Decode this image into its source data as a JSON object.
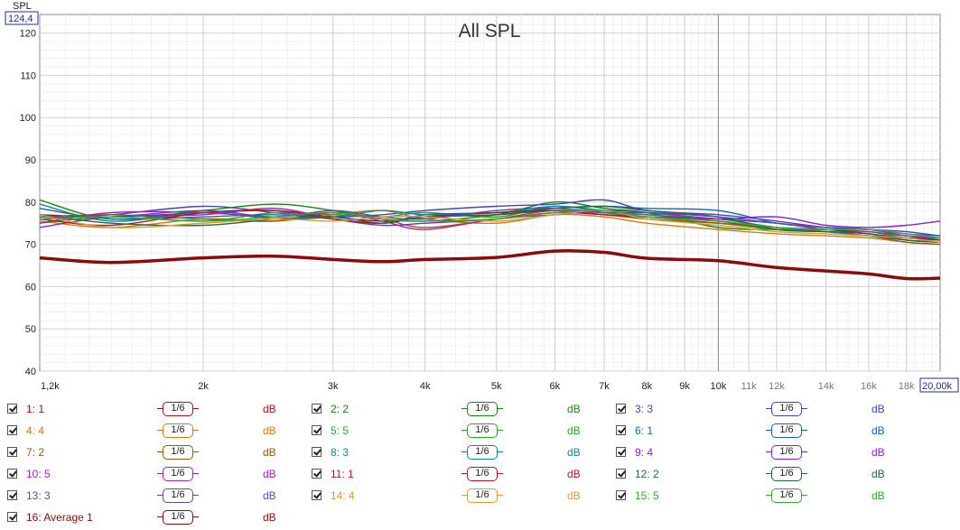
{
  "chart_data": {
    "type": "line",
    "title": "All SPL",
    "ylabel": "SPL",
    "y_top_readout": "124,4",
    "x_end_readout": "20,00k",
    "x_scale": "log",
    "xlim": [
      1200,
      20000
    ],
    "ylim": [
      40,
      124.4
    ],
    "y_ticks": [
      40,
      50,
      60,
      70,
      80,
      90,
      100,
      110,
      120
    ],
    "y_tick_labels": [
      "40",
      "50",
      "60",
      "70",
      "80",
      "90",
      "100",
      "110",
      "120"
    ],
    "x_ticks": [
      1200,
      2000,
      3000,
      4000,
      5000,
      6000,
      7000,
      8000,
      9000,
      10000,
      11000,
      12000,
      14000,
      16000,
      18000
    ],
    "x_tick_labels": [
      "1,2k",
      "2k",
      "3k",
      "4k",
      "5k",
      "6k",
      "7k",
      "8k",
      "9k",
      "10k",
      "11k",
      "12k",
      "14k",
      "16k",
      "18k"
    ],
    "grid": true,
    "x": [
      1200,
      1500,
      2000,
      2500,
      3000,
      3500,
      4000,
      5000,
      6000,
      7000,
      8000,
      10000,
      12000,
      14000,
      16000,
      18000,
      20000
    ],
    "series": [
      {
        "name": "1: 1",
        "color": "#aa1111",
        "values": [
          77,
          76.5,
          77.5,
          78,
          76.5,
          75.5,
          76.5,
          77,
          78,
          77.5,
          77,
          75.5,
          73.5,
          73,
          72.5,
          71,
          70.5
        ]
      },
      {
        "name": "2: 2",
        "color": "#118811",
        "values": [
          80.5,
          76,
          78,
          79.5,
          78,
          76,
          75.5,
          77,
          80,
          78.5,
          77.5,
          74,
          73.5,
          73.5,
          72.5,
          71.5,
          71.5
        ]
      },
      {
        "name": "3: 3",
        "color": "#4444bb",
        "values": [
          76,
          77,
          79,
          77.5,
          76.5,
          77,
          78,
          79,
          79.5,
          80.5,
          78,
          77,
          75.5,
          74,
          73.5,
          73,
          72
        ]
      },
      {
        "name": "4: 4",
        "color": "#dd7711",
        "values": [
          75.5,
          74,
          76,
          75.5,
          77,
          78,
          76,
          75,
          77,
          76.5,
          75,
          73.5,
          72.5,
          72,
          71.5,
          70.5,
          70
        ]
      },
      {
        "name": "5: 5",
        "color": "#22aa22",
        "values": [
          75,
          76.5,
          75.5,
          77.5,
          77,
          76.5,
          77.5,
          76.5,
          79,
          77.5,
          76.5,
          75,
          73.5,
          73.5,
          73,
          71.5,
          71
        ]
      },
      {
        "name": "6: 1",
        "color": "#1166bb",
        "values": [
          78.5,
          76,
          76.5,
          77,
          76,
          75,
          77,
          77.5,
          78.5,
          79,
          78.5,
          78,
          75,
          74,
          73.5,
          72,
          71
        ]
      },
      {
        "name": "7: 2",
        "color": "#995511",
        "values": [
          76.5,
          77,
          76,
          75.5,
          77.5,
          76,
          74,
          76,
          78,
          77,
          76,
          75,
          74,
          73,
          72,
          70.5,
          70
        ]
      },
      {
        "name": "8: 3",
        "color": "#118888",
        "values": [
          79.5,
          75.5,
          77.5,
          76,
          76.5,
          78,
          77,
          77.5,
          79,
          78,
          77,
          76,
          74,
          73,
          72,
          71,
          70.5
        ]
      },
      {
        "name": "9: 4",
        "color": "#8822cc",
        "values": [
          74,
          76.5,
          77,
          78.5,
          76,
          74.5,
          75,
          76,
          77.5,
          77,
          76.5,
          76,
          76.5,
          74.5,
          74,
          74.5,
          75.5
        ]
      },
      {
        "name": "10: 5",
        "color": "#aa22aa",
        "values": [
          75,
          77.5,
          77.5,
          76.5,
          77.5,
          75.5,
          73.5,
          76,
          77,
          78,
          77.5,
          76,
          75,
          73.5,
          73,
          72,
          71.5
        ]
      },
      {
        "name": "11: 1",
        "color": "#bb1122",
        "values": [
          76,
          74.5,
          77.5,
          78,
          76,
          75,
          76.5,
          77.5,
          78,
          77,
          76.5,
          75.5,
          74,
          73.5,
          72.5,
          71.5,
          71
        ]
      },
      {
        "name": "12: 2",
        "color": "#226644",
        "values": [
          77,
          75,
          74.5,
          76,
          76.5,
          75,
          76.5,
          77,
          78.5,
          79,
          78,
          76.5,
          73.5,
          73,
          72.5,
          71,
          70.5
        ]
      },
      {
        "name": "13: 3",
        "color": "#4455aa",
        "values": [
          76.5,
          76.5,
          78,
          76.5,
          78,
          76.5,
          76,
          78,
          78.5,
          77.5,
          77.5,
          76.5,
          75,
          74,
          73.5,
          72.5,
          72
        ]
      },
      {
        "name": "14: 4",
        "color": "#dd9933",
        "values": [
          77,
          74,
          75,
          76,
          75.5,
          76.5,
          76.5,
          75.5,
          77,
          78,
          76,
          74.5,
          73,
          72.5,
          72,
          71.5,
          70.5
        ]
      },
      {
        "name": "15: 5",
        "color": "#33aa33",
        "values": [
          76,
          76.5,
          75.5,
          76.5,
          77.5,
          76,
          75.5,
          76,
          77.5,
          78,
          76.5,
          75.5,
          74,
          73.5,
          73.5,
          72.5,
          71.5
        ]
      },
      {
        "name": "16: Average 1",
        "color": "#8b0a0a",
        "bold": true,
        "values": [
          66.8,
          65.7,
          66.8,
          67.2,
          66.4,
          65.9,
          66.4,
          66.9,
          68.4,
          68.1,
          66.7,
          66.1,
          64.5,
          63.7,
          63,
          61.9,
          62
        ]
      }
    ]
  },
  "legend": {
    "smoothing_label": "1/6",
    "unit_label": "dB",
    "items": [
      {
        "name": "1: 1",
        "color": "#aa1111"
      },
      {
        "name": "2: 2",
        "color": "#118811"
      },
      {
        "name": "3: 3",
        "color": "#4444bb"
      },
      {
        "name": "4: 4",
        "color": "#dd7711"
      },
      {
        "name": "5: 5",
        "color": "#22aa22"
      },
      {
        "name": "6: 1",
        "color": "#1166bb"
      },
      {
        "name": "7: 2",
        "color": "#995511"
      },
      {
        "name": "8: 3",
        "color": "#118888"
      },
      {
        "name": "9: 4",
        "color": "#8822cc"
      },
      {
        "name": "10: 5",
        "color": "#aa22aa"
      },
      {
        "name": "11: 1",
        "color": "#bb1122"
      },
      {
        "name": "12: 2",
        "color": "#226644"
      },
      {
        "name": "13: 3",
        "color": "#4455aa"
      },
      {
        "name": "14: 4",
        "color": "#dd9933"
      },
      {
        "name": "15: 5",
        "color": "#33aa33"
      },
      {
        "name": "16: Average 1",
        "color": "#8b0a0a"
      }
    ]
  }
}
